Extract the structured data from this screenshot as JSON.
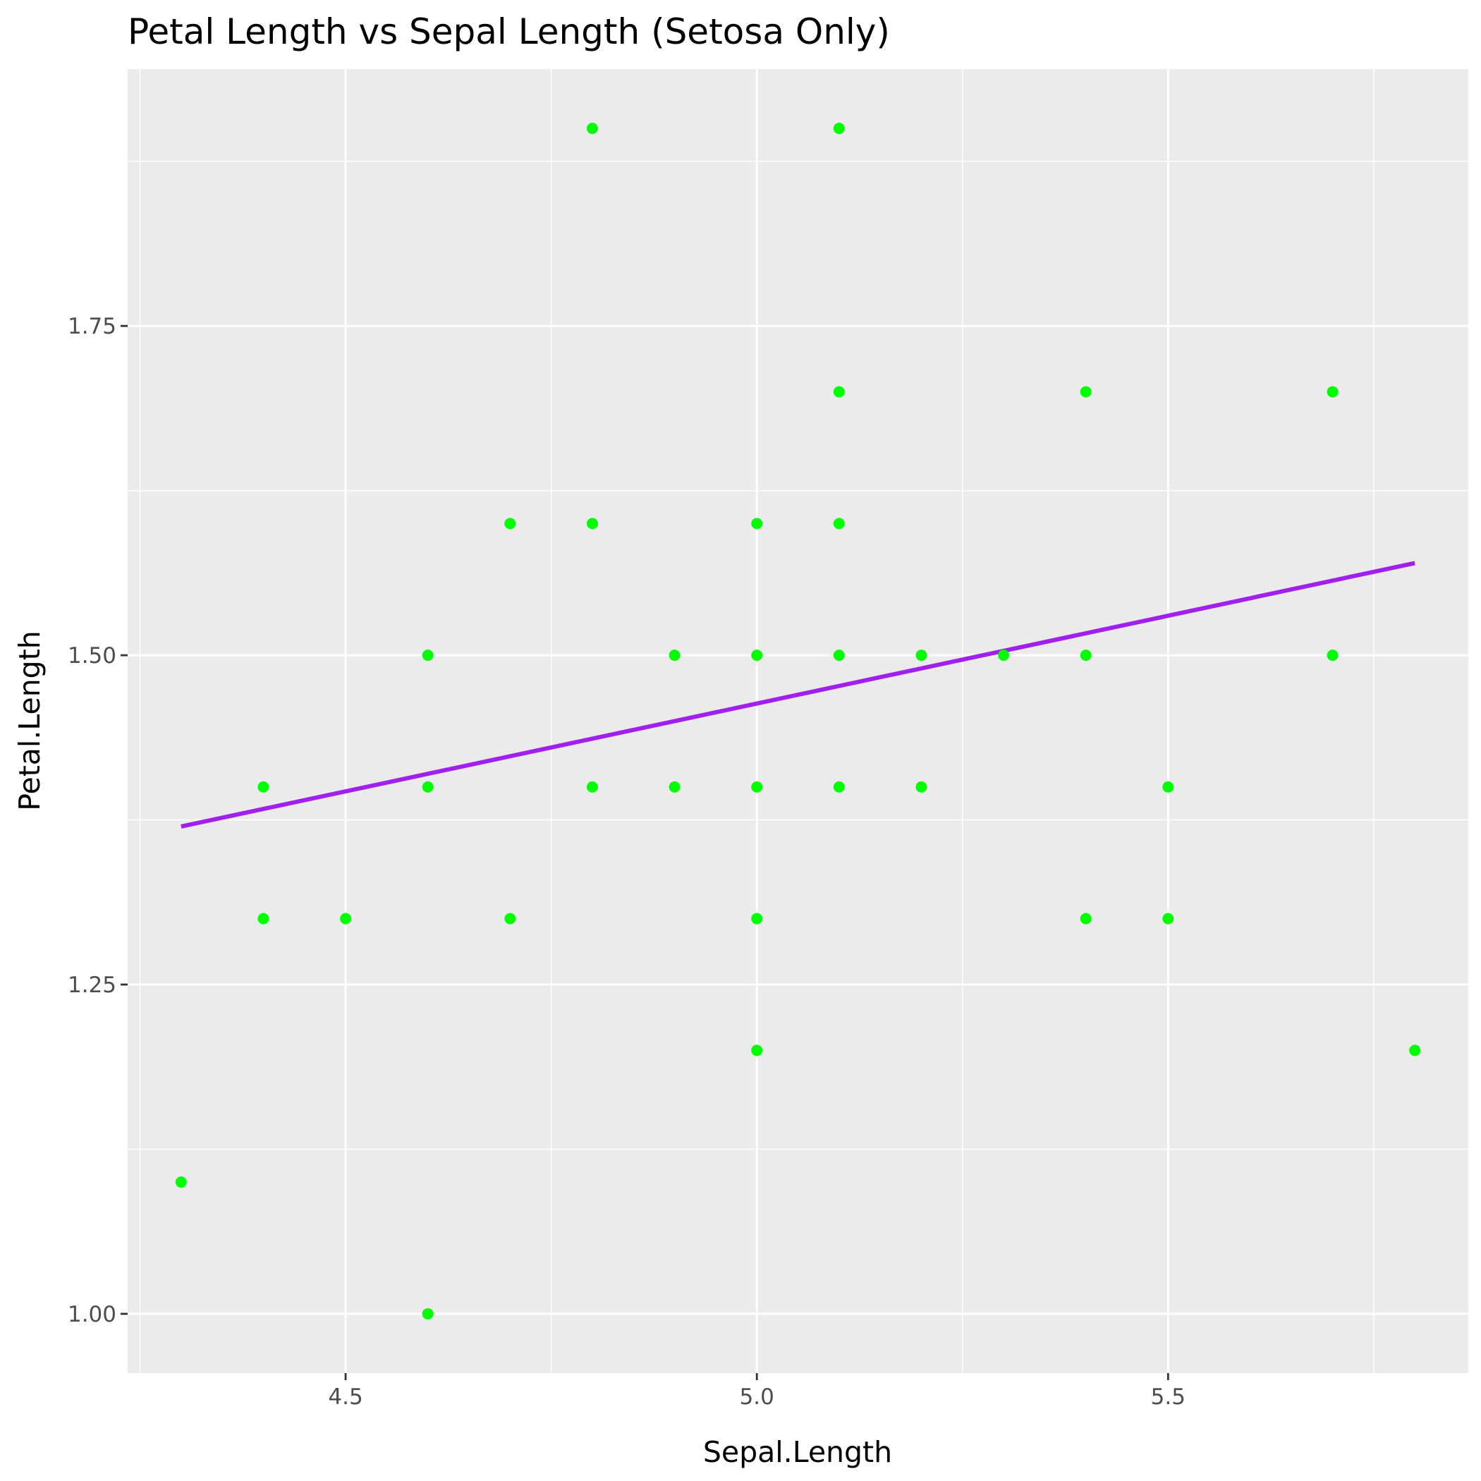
{
  "chart_data": {
    "type": "scatter",
    "title": "Petal Length vs Sepal Length (Setosa Only)",
    "xlabel": "Sepal.Length",
    "ylabel": "Petal.Length",
    "xlim": [
      4.235,
      5.865
    ],
    "ylim": [
      0.955,
      1.945
    ],
    "x_major_ticks": [
      4.5,
      5.0,
      5.5
    ],
    "x_tick_labels": [
      "4.5",
      "5.0",
      "5.5"
    ],
    "x_minor_ticks": [
      4.25,
      4.75,
      5.25,
      5.75
    ],
    "y_major_ticks": [
      1.0,
      1.25,
      1.5,
      1.75
    ],
    "y_tick_labels": [
      "1.00",
      "1.25",
      "1.50",
      "1.75"
    ],
    "y_minor_ticks": [
      1.125,
      1.375,
      1.625,
      1.875
    ],
    "grid": true,
    "points": [
      {
        "x": 4.8,
        "y": 1.9
      },
      {
        "x": 5.1,
        "y": 1.9
      },
      {
        "x": 5.1,
        "y": 1.7
      },
      {
        "x": 5.4,
        "y": 1.7
      },
      {
        "x": 5.7,
        "y": 1.7
      },
      {
        "x": 4.7,
        "y": 1.6
      },
      {
        "x": 4.8,
        "y": 1.6
      },
      {
        "x": 5.0,
        "y": 1.6
      },
      {
        "x": 5.1,
        "y": 1.6
      },
      {
        "x": 4.6,
        "y": 1.5
      },
      {
        "x": 4.9,
        "y": 1.5
      },
      {
        "x": 5.0,
        "y": 1.5
      },
      {
        "x": 5.1,
        "y": 1.5
      },
      {
        "x": 5.2,
        "y": 1.5
      },
      {
        "x": 5.3,
        "y": 1.5
      },
      {
        "x": 5.4,
        "y": 1.5
      },
      {
        "x": 5.7,
        "y": 1.5
      },
      {
        "x": 4.4,
        "y": 1.4
      },
      {
        "x": 4.6,
        "y": 1.4
      },
      {
        "x": 4.8,
        "y": 1.4
      },
      {
        "x": 4.9,
        "y": 1.4
      },
      {
        "x": 5.0,
        "y": 1.4
      },
      {
        "x": 5.1,
        "y": 1.4
      },
      {
        "x": 5.2,
        "y": 1.4
      },
      {
        "x": 5.5,
        "y": 1.4
      },
      {
        "x": 4.4,
        "y": 1.3
      },
      {
        "x": 4.5,
        "y": 1.3
      },
      {
        "x": 4.7,
        "y": 1.3
      },
      {
        "x": 5.0,
        "y": 1.3
      },
      {
        "x": 5.4,
        "y": 1.3
      },
      {
        "x": 5.5,
        "y": 1.3
      },
      {
        "x": 5.0,
        "y": 1.2
      },
      {
        "x": 5.8,
        "y": 1.2
      },
      {
        "x": 4.3,
        "y": 1.1
      },
      {
        "x": 4.6,
        "y": 1.0
      }
    ],
    "trend_line": {
      "x": [
        4.3,
        5.8
      ],
      "y": [
        1.37,
        1.57
      ]
    },
    "colors": {
      "panel": "#ebebeb",
      "grid": "#ffffff",
      "point": "#00ff00",
      "line": "#a020f0",
      "tick": "#333333"
    }
  }
}
